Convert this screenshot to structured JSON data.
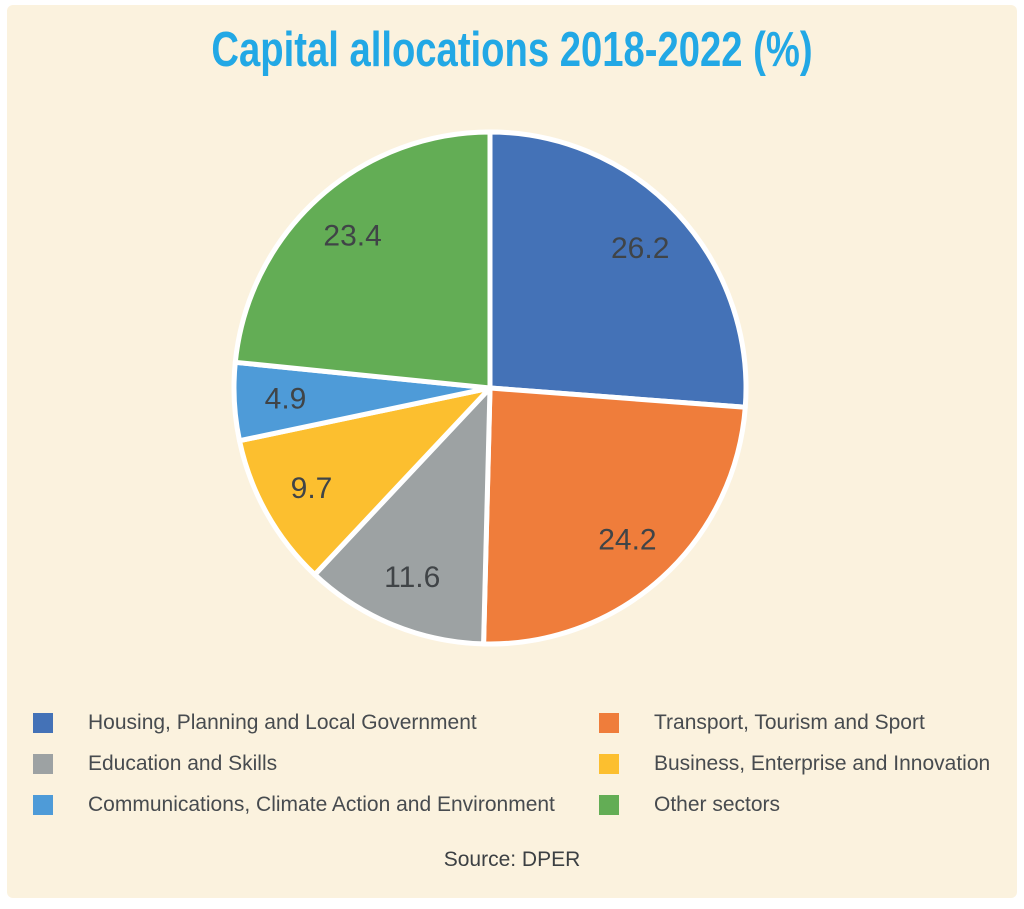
{
  "title": "Capital allocations 2018-2022 (%)",
  "source": "Source: DPER",
  "colors": {
    "frame": "#FFFFFF",
    "background": "#FBF2DE",
    "title_text": "#22A8E5",
    "value_label": "#404447",
    "legend_text": "#474B4F",
    "source_text": "#3C4043",
    "slice_border": "#FFFFFF"
  },
  "chart_data": {
    "type": "pie",
    "title": "Capital allocations 2018-2022 (%)",
    "units": "percent",
    "start_angle_deg": 0,
    "direction": "clockwise",
    "legend_position": "bottom",
    "slices": [
      {
        "label": "Housing, Planning and Local Government",
        "value": 26.2,
        "color": "#4472B7"
      },
      {
        "label": "Transport, Tourism and Sport",
        "value": 24.2,
        "color": "#EF7D3B"
      },
      {
        "label": "Education and Skills",
        "value": 11.6,
        "color": "#9DA2A3"
      },
      {
        "label": "Business, Enterprise and Innovation",
        "value": 9.7,
        "color": "#FCBF2F"
      },
      {
        "label": "Communications, Climate Action and Environment",
        "value": 4.9,
        "color": "#4E9BD8"
      },
      {
        "label": "Other sectors",
        "value": 23.4,
        "color": "#63AD55"
      }
    ],
    "value_labels": [
      "26.2",
      "24.2",
      "11.6",
      "9.7",
      "4.9",
      "23.4"
    ],
    "source": "Source: DPER"
  },
  "legend": {
    "items": [
      {
        "label": "Housing, Planning and Local Government",
        "color": "#4472B7"
      },
      {
        "label": "Education and Skills",
        "color": "#9DA2A3"
      },
      {
        "label": "Communications, Climate Action and Environment",
        "color": "#4E9BD8"
      },
      {
        "label": "Transport, Tourism and Sport",
        "color": "#EF7D3B"
      },
      {
        "label": "Business, Enterprise and Innovation",
        "color": "#FCBF2F"
      },
      {
        "label": "Other sectors",
        "color": "#63AD55"
      }
    ]
  }
}
